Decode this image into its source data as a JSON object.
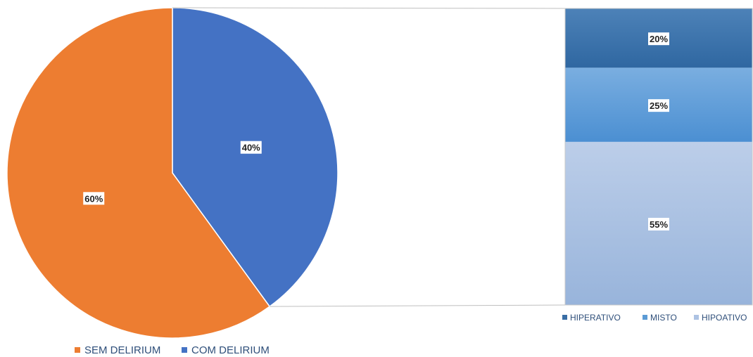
{
  "chart_data": [
    {
      "type": "pie",
      "categories": [
        "SEM DELIRIUM",
        "COM DELIRIUM"
      ],
      "values": [
        60,
        40
      ],
      "labels": [
        "60%",
        "40%"
      ],
      "colors": [
        "#ed7d31",
        "#4472c4"
      ],
      "legend_position": "bottom-left"
    },
    {
      "type": "bar",
      "stacked": true,
      "categories": [
        "HIPERATIVO",
        "MISTO",
        "HIPOATIVO"
      ],
      "values": [
        20,
        25,
        55
      ],
      "labels": [
        "20%",
        "25%",
        "55%"
      ],
      "colors": [
        "#3a6ea5",
        "#5b9bd5",
        "#adc3e3"
      ],
      "legend_position": "bottom",
      "ylim": [
        0,
        100
      ]
    }
  ]
}
